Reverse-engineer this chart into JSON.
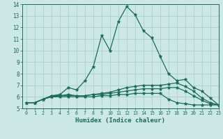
{
  "xlabel": "Humidex (Indice chaleur)",
  "xlim": [
    -0.5,
    23
  ],
  "ylim": [
    5,
    14
  ],
  "xticks": [
    0,
    1,
    2,
    3,
    4,
    5,
    6,
    7,
    8,
    9,
    10,
    11,
    12,
    13,
    14,
    15,
    16,
    17,
    18,
    19,
    20,
    21,
    22,
    23
  ],
  "yticks": [
    5,
    6,
    7,
    8,
    9,
    10,
    11,
    12,
    13,
    14
  ],
  "bg_color": "#cce8e4",
  "line_color": "#1a6b5a",
  "grid_color": "#aad0cc",
  "series": [
    [
      5.5,
      5.5,
      5.8,
      6.1,
      6.2,
      6.8,
      6.6,
      7.4,
      8.6,
      11.3,
      10.0,
      12.5,
      13.8,
      13.1,
      11.7,
      11.1,
      9.5,
      8.0,
      7.4,
      7.5,
      6.8,
      6.5,
      5.9,
      5.3
    ],
    [
      5.5,
      5.5,
      5.8,
      6.1,
      6.1,
      6.2,
      6.1,
      6.1,
      6.2,
      6.3,
      6.4,
      6.6,
      6.8,
      6.9,
      7.0,
      7.0,
      7.0,
      7.1,
      7.2,
      6.9,
      6.5,
      5.9,
      5.5,
      5.3
    ],
    [
      5.5,
      5.5,
      5.8,
      6.0,
      6.1,
      6.1,
      6.1,
      6.1,
      6.2,
      6.2,
      6.3,
      6.4,
      6.5,
      6.6,
      6.7,
      6.7,
      6.7,
      6.8,
      6.8,
      6.5,
      6.1,
      5.7,
      5.4,
      5.3
    ],
    [
      5.5,
      5.5,
      5.8,
      6.0,
      6.0,
      6.0,
      6.0,
      6.0,
      6.0,
      6.1,
      6.1,
      6.2,
      6.2,
      6.3,
      6.3,
      6.3,
      6.3,
      5.8,
      5.5,
      5.4,
      5.3,
      5.3,
      5.3,
      5.3
    ]
  ],
  "marker_size": 3.5,
  "line_width": 0.9
}
